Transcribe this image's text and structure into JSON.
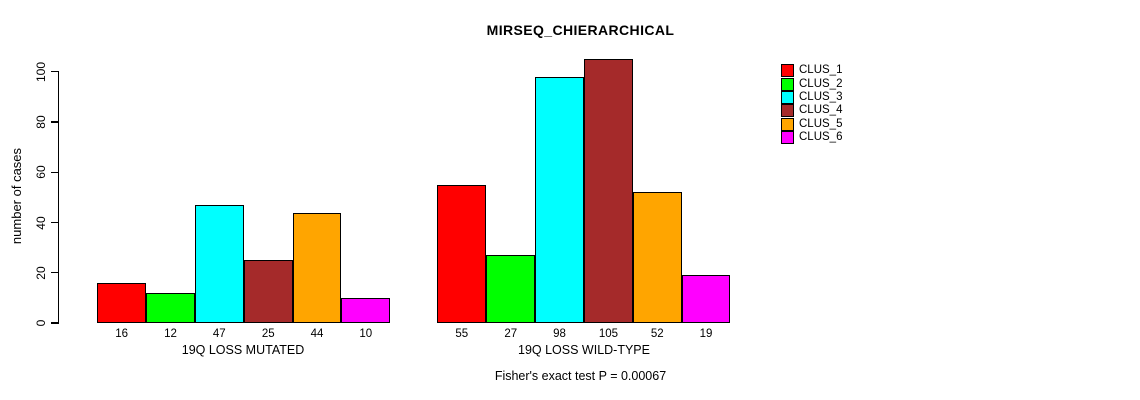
{
  "title": "MIRSEQ_CHIERARCHICAL",
  "footer": {
    "note": "Fisher's exact test P = 0.00067"
  },
  "chart_data": {
    "type": "bar",
    "title": "MIRSEQ_CHIERARCHICAL",
    "categories": [
      "19Q LOSS MUTATED",
      "19Q LOSS WILD-TYPE"
    ],
    "series": [
      {
        "name": "CLUS_1",
        "color": "#FF0000",
        "values": [
          16,
          55
        ]
      },
      {
        "name": "CLUS_2",
        "color": "#00FF00",
        "values": [
          12,
          27
        ]
      },
      {
        "name": "CLUS_3",
        "color": "#00FFFF",
        "values": [
          47,
          98
        ]
      },
      {
        "name": "CLUS_4",
        "color": "#A52A2A",
        "values": [
          25,
          105
        ]
      },
      {
        "name": "CLUS_5",
        "color": "#FFA500",
        "values": [
          44,
          52
        ]
      },
      {
        "name": "CLUS_6",
        "color": "#FF00FF",
        "values": [
          10,
          19
        ]
      }
    ],
    "bar_value_labels": true,
    "xlabel": "",
    "ylabel": "number of cases",
    "ylim": [
      0,
      100
    ],
    "yticks": [
      0,
      20,
      40,
      60,
      80,
      100
    ],
    "grid": false,
    "legend_position": "top-right",
    "annotation": "Fisher's exact test P = 0.00067"
  }
}
